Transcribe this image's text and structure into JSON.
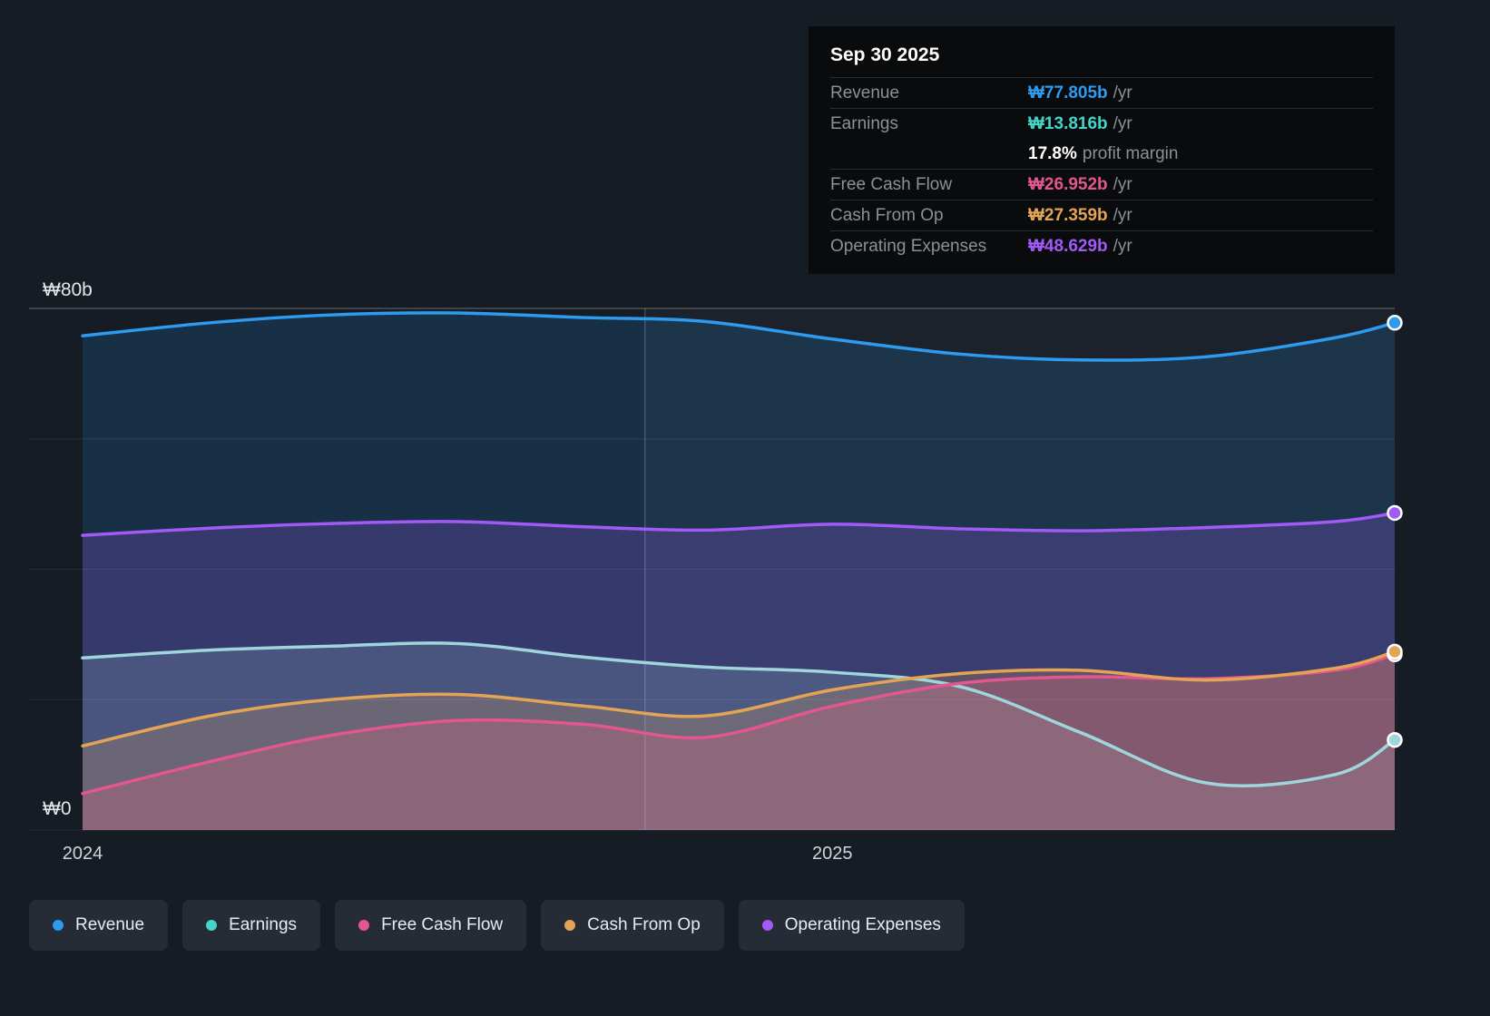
{
  "tooltip": {
    "date": "Sep 30 2025",
    "rows": [
      {
        "label": "Revenue",
        "value": "₩77.805b",
        "suffix": "/yr",
        "color": "#2d9bf0",
        "divider": true
      },
      {
        "label": "Earnings",
        "value": "₩13.816b",
        "suffix": "/yr",
        "color": "#45d5c8",
        "divider": true
      },
      {
        "label": "",
        "value": "17.8%",
        "suffix": "profit margin",
        "color": "#ffffff",
        "divider": false
      },
      {
        "label": "Free Cash Flow",
        "value": "₩26.952b",
        "suffix": "/yr",
        "color": "#e4568f",
        "divider": true
      },
      {
        "label": "Cash From Op",
        "value": "₩27.359b",
        "suffix": "/yr",
        "color": "#e3a455",
        "divider": true
      },
      {
        "label": "Operating Expenses",
        "value": "₩48.629b",
        "suffix": "/yr",
        "color": "#a259f7",
        "divider": true
      }
    ]
  },
  "axis": {
    "y_top_label": "₩80b",
    "y_bottom_label": "₩0",
    "x_tick_labels": [
      "2024",
      "2025"
    ],
    "x_tick_years": [
      2024,
      2025
    ]
  },
  "legend": [
    "Revenue",
    "Earnings",
    "Free Cash Flow",
    "Cash From Op",
    "Operating Expenses"
  ],
  "chart_data": {
    "type": "area",
    "title": "Revenue and expenses over time (₩ billions per year)",
    "x": [
      2024.0,
      2024.17,
      2024.33,
      2024.5,
      2024.67,
      2024.83,
      2025.0,
      2025.17,
      2025.33,
      2025.5,
      2025.67,
      2025.75
    ],
    "xlim": [
      2024.0,
      2025.75
    ],
    "ylim": [
      0,
      80
    ],
    "yticks": [
      0,
      20,
      40,
      60,
      80
    ],
    "divider_x": 2024.75,
    "legend_position": "bottom-left",
    "series": [
      {
        "name": "Revenue",
        "color": "#2d9bf0",
        "fill": "rgba(45,155,240,0.16)",
        "values": [
          75.8,
          77.8,
          79.0,
          79.3,
          78.6,
          78.0,
          75.3,
          73.0,
          72.1,
          72.6,
          75.5,
          77.805
        ]
      },
      {
        "name": "Operating Expenses",
        "color": "#a259f7",
        "fill": "rgba(162,89,247,0.22)",
        "values": [
          45.2,
          46.3,
          47.0,
          47.3,
          46.5,
          46.0,
          46.9,
          46.2,
          45.9,
          46.4,
          47.3,
          48.629
        ]
      },
      {
        "name": "Earnings",
        "color": "#45d5c8",
        "line_color": "#9fd6de",
        "fill": "rgba(158,214,222,0.18)",
        "values": [
          26.4,
          27.6,
          28.2,
          28.6,
          26.5,
          25.0,
          24.2,
          22.0,
          15.0,
          7.2,
          8.5,
          13.816
        ]
      },
      {
        "name": "Free Cash Flow",
        "color": "#e4568f",
        "fill": "rgba(228,86,143,0.28)",
        "values": [
          5.6,
          10.5,
          14.5,
          16.8,
          16.2,
          14.2,
          19.0,
          22.5,
          23.5,
          23.2,
          24.5,
          26.952
        ]
      },
      {
        "name": "Cash From Op",
        "color": "#e3a455",
        "fill": "rgba(227,164,85,0.22)",
        "values": [
          12.9,
          17.5,
          20.0,
          20.8,
          19.0,
          17.5,
          21.5,
          24.0,
          24.5,
          23.0,
          24.8,
          27.359
        ]
      }
    ]
  }
}
